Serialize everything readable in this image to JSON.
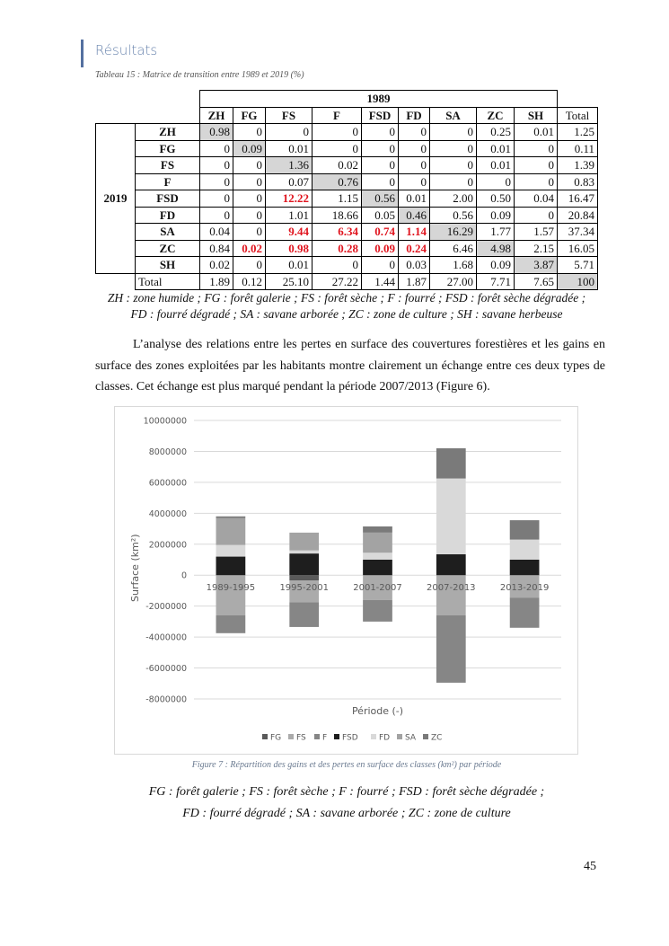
{
  "header": {
    "title": "Résultats",
    "accent": "#5470a0"
  },
  "table": {
    "caption": "Tableau 15 : Matrice de transition entre 1989 et 2019 (%)",
    "col_group": "1989",
    "row_group": "2019",
    "columns": [
      "ZH",
      "FG",
      "FS",
      "F",
      "FSD",
      "FD",
      "SA",
      "ZC",
      "SH",
      "Total"
    ],
    "rows": [
      {
        "label": "ZH",
        "cells": [
          "0.98",
          "0",
          "0",
          "0",
          "0",
          "0",
          "0",
          "0.25",
          "0.01",
          "1.25"
        ]
      },
      {
        "label": "FG",
        "cells": [
          "0",
          "0.09",
          "0.01",
          "0",
          "0",
          "0",
          "0",
          "0.01",
          "0",
          "0.11"
        ]
      },
      {
        "label": "FS",
        "cells": [
          "0",
          "0",
          "1.36",
          "0.02",
          "0",
          "0",
          "0",
          "0.01",
          "0",
          "1.39"
        ]
      },
      {
        "label": "F",
        "cells": [
          "0",
          "0",
          "0.07",
          "0.76",
          "0",
          "0",
          "0",
          "0",
          "0",
          "0.83"
        ]
      },
      {
        "label": "FSD",
        "cells": [
          "0",
          "0",
          "12.22",
          "1.15",
          "0.56",
          "0.01",
          "2.00",
          "0.50",
          "0.04",
          "16.47"
        ]
      },
      {
        "label": "FD",
        "cells": [
          "0",
          "0",
          "1.01",
          "18.66",
          "0.05",
          "0.46",
          "0.56",
          "0.09",
          "0",
          "20.84"
        ]
      },
      {
        "label": "SA",
        "cells": [
          "0.04",
          "0",
          "9.44",
          "6.34",
          "0.74",
          "1.14",
          "16.29",
          "1.77",
          "1.57",
          "37.34"
        ]
      },
      {
        "label": "ZC",
        "cells": [
          "0.84",
          "0.02",
          "0.98",
          "0.28",
          "0.09",
          "0.24",
          "6.46",
          "4.98",
          "2.15",
          "16.05"
        ]
      },
      {
        "label": "SH",
        "cells": [
          "0.02",
          "0",
          "0.01",
          "0",
          "0",
          "0.03",
          "1.68",
          "0.09",
          "3.87",
          "5.71"
        ]
      }
    ],
    "total": {
      "label": "Total",
      "cells": [
        "1.89",
        "0.12",
        "25.10",
        "27.22",
        "1.44",
        "1.87",
        "27.00",
        "7.71",
        "7.65",
        "100"
      ]
    },
    "highlight_color": "#e0141e",
    "legend_lines": [
      "ZH : zone humide ; FG : forêt galerie ; FS : forêt sèche ; F : fourré ; FSD : forêt sèche dégradée ;",
      "FD : fourré dégradé ; SA : savane arborée ; ZC : zone de culture ; SH : savane herbeuse"
    ]
  },
  "paragraph": "L’analyse des relations entre les pertes en surface des couvertures forestières et les gains en surface des zones exploitées par les habitants montre clairement un échange entre ces deux types de classes. Cet échange est plus marqué pendant la période 2007/2013 (Figure 6).",
  "chart_data": {
    "type": "bar",
    "stacked": true,
    "title": "",
    "xlabel": "Période (-)",
    "ylabel": "Surface (km²)",
    "ylim": [
      -8000000,
      10000000
    ],
    "yticks": [
      10000000,
      8000000,
      6000000,
      4000000,
      2000000,
      0,
      -2000000,
      -4000000,
      -6000000,
      -8000000
    ],
    "grid": true,
    "legend_position": "bottom",
    "categories": [
      "1989-1995",
      "1995-2001",
      "2001-2007",
      "2007-2013",
      "2013-2019"
    ],
    "series": [
      {
        "name": "FG",
        "color": "#5a5a5a",
        "values": [
          0,
          -350000,
          0,
          0,
          0
        ]
      },
      {
        "name": "FS",
        "color": "#ababab",
        "values": [
          -2600000,
          -1400000,
          -1600000,
          -2600000,
          -1450000
        ]
      },
      {
        "name": "F",
        "color": "#868686",
        "values": [
          -1150000,
          -1600000,
          -1400000,
          -4350000,
          -1950000
        ]
      },
      {
        "name": "FSD",
        "color": "#1e1e1e",
        "values": [
          1200000,
          1400000,
          1000000,
          1350000,
          1000000
        ]
      },
      {
        "name": "FD",
        "color": "#d9d9d9",
        "values": [
          750000,
          200000,
          450000,
          4900000,
          1300000
        ]
      },
      {
        "name": "SA",
        "color": "#a3a3a3",
        "values": [
          1750000,
          1150000,
          1300000,
          0,
          0
        ]
      },
      {
        "name": "ZC",
        "color": "#7a7a7a",
        "values": [
          100000,
          0,
          400000,
          1950000,
          1250000
        ]
      }
    ]
  },
  "figure": {
    "caption": "Figure 7 : Répartition des gains et des pertes en surface des classes (km²) par période",
    "legend_lines": [
      "FG : forêt galerie ; FS : forêt sèche ; F : fourré ; FSD : forêt sèche dégradée ;",
      "FD : fourré dégradé ; SA : savane arborée ; ZC : zone de culture"
    ]
  },
  "page_number": "45"
}
